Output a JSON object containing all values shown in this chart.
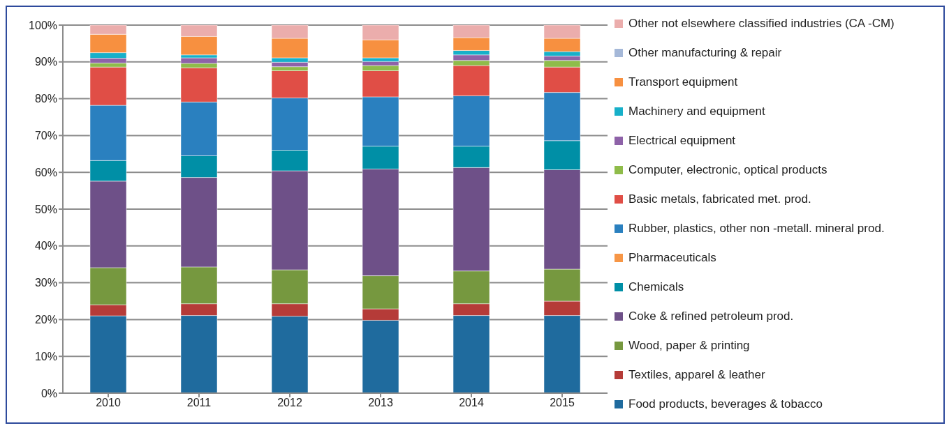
{
  "chart_data": {
    "type": "bar",
    "stacked": true,
    "categories": [
      "2010",
      "2011",
      "2012",
      "2013",
      "2014",
      "2015"
    ],
    "ylim": [
      0,
      100
    ],
    "yticks": [
      {
        "value": 0,
        "label": "0%"
      },
      {
        "value": 10,
        "label": "10%"
      },
      {
        "value": 20,
        "label": "20%"
      },
      {
        "value": 30,
        "label": "30%"
      },
      {
        "value": 40,
        "label": "40%"
      },
      {
        "value": 50,
        "label": "50%"
      },
      {
        "value": 60,
        "label": "60%"
      },
      {
        "value": 70,
        "label": "70%"
      },
      {
        "value": 80,
        "label": "80%"
      },
      {
        "value": 90,
        "label": "90%"
      },
      {
        "value": 100,
        "label": "100%"
      }
    ],
    "grid": "y",
    "legend": "right",
    "series": [
      {
        "name": "Food products, beverages & tobacco",
        "color": "#1f6b9e",
        "values": [
          21.0,
          21.1,
          20.9,
          19.8,
          21.1,
          21.1
        ]
      },
      {
        "name": "Textiles, apparel & leather",
        "color": "#b53b38",
        "values": [
          3.0,
          3.2,
          3.4,
          3.1,
          3.2,
          3.9
        ]
      },
      {
        "name": "Wood, paper & printing",
        "color": "#76983f",
        "values": [
          10.1,
          10.0,
          9.2,
          9.0,
          8.9,
          8.7
        ]
      },
      {
        "name": "Coke & refined petroleum prod.",
        "color": "#6e5088",
        "values": [
          23.5,
          24.3,
          26.9,
          29.0,
          28.1,
          27.0
        ]
      },
      {
        "name": "Chemicals",
        "color": "#008fa6",
        "values": [
          5.6,
          5.9,
          5.6,
          6.2,
          5.8,
          7.9
        ]
      },
      {
        "name": "Pharmaceuticals",
        "color": "#f79646",
        "values": [
          0,
          0,
          0,
          0,
          0,
          0
        ]
      },
      {
        "name": "Rubber, plastics, other non -metall. mineral prod.",
        "color": "#2a80bf",
        "values": [
          15.0,
          14.6,
          14.2,
          13.4,
          13.7,
          13.1
        ]
      },
      {
        "name": "Basic metals, fabricated met. prod.",
        "color": "#e04e46",
        "values": [
          10.4,
          9.3,
          7.4,
          7.1,
          8.2,
          6.9
        ]
      },
      {
        "name": "Computer, electronic, optical products",
        "color": "#8fbc4a",
        "values": [
          1.1,
          1.2,
          1.1,
          1.4,
          1.4,
          1.8
        ]
      },
      {
        "name": "Electrical equipment",
        "color": "#8e62a8",
        "values": [
          1.3,
          1.5,
          1.2,
          1.1,
          1.5,
          1.2
        ]
      },
      {
        "name": "Machinery and equipment",
        "color": "#17b0c9",
        "values": [
          1.5,
          0.8,
          1.2,
          1.0,
          1.2,
          1.2
        ]
      },
      {
        "name": "Transport equipment",
        "color": "#f79040",
        "values": [
          5.0,
          5.0,
          5.3,
          4.9,
          3.5,
          3.6
        ]
      },
      {
        "name": "Other manufacturing & repair",
        "color": "#a5b8d8",
        "values": [
          0,
          0,
          0,
          0,
          0,
          0
        ]
      },
      {
        "name": "Other not elsewhere classified industries (CA  -CM)",
        "color": "#ebadac",
        "values": [
          2.5,
          3.1,
          3.6,
          4.0,
          3.4,
          3.6
        ]
      }
    ]
  }
}
